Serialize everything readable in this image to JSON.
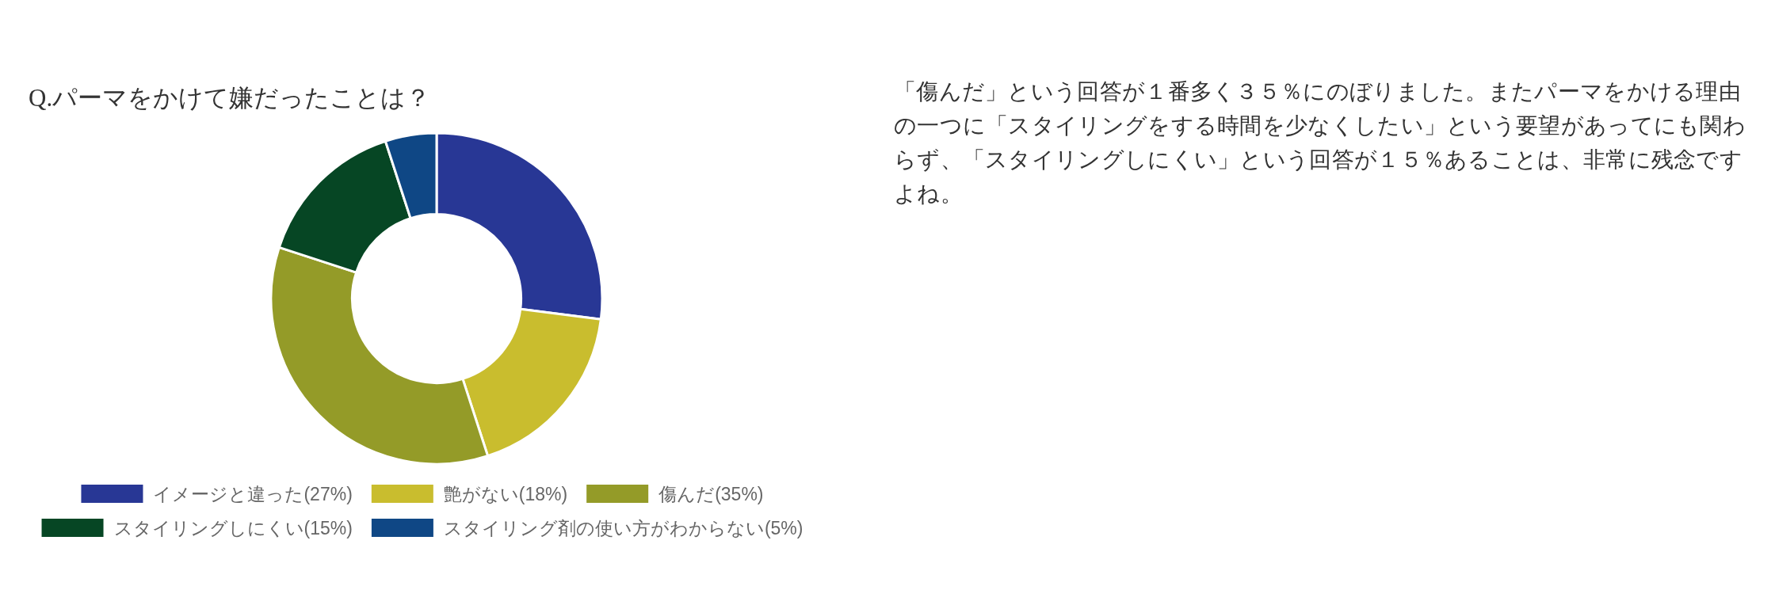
{
  "chart_data": {
    "type": "donut",
    "title": "Q.パーマをかけて嫌だったことは？",
    "categories": [
      "イメージと違った(27%)",
      "艶がない(18%)",
      "傷んだ(35%)",
      "スタイリングしにくい(15%)",
      "スタイリング剤の使い方がわからない(5%)"
    ],
    "values": [
      27,
      18,
      35,
      15,
      5
    ],
    "colors": [
      "#283795",
      "#c9bd2e",
      "#949b28",
      "#064624",
      "#0f4785"
    ],
    "legend": "bottom",
    "annotations": [
      "「傷んだ」という回答が１番多く３５％にのぼりました。またパーマをかける理由の一つに「スタイリングをする時間を少なくしたい」という要望があってにも関わらず、「スタイリングしにくい」という回答が１５％あることは、非常に残念ですよね。"
    ]
  }
}
